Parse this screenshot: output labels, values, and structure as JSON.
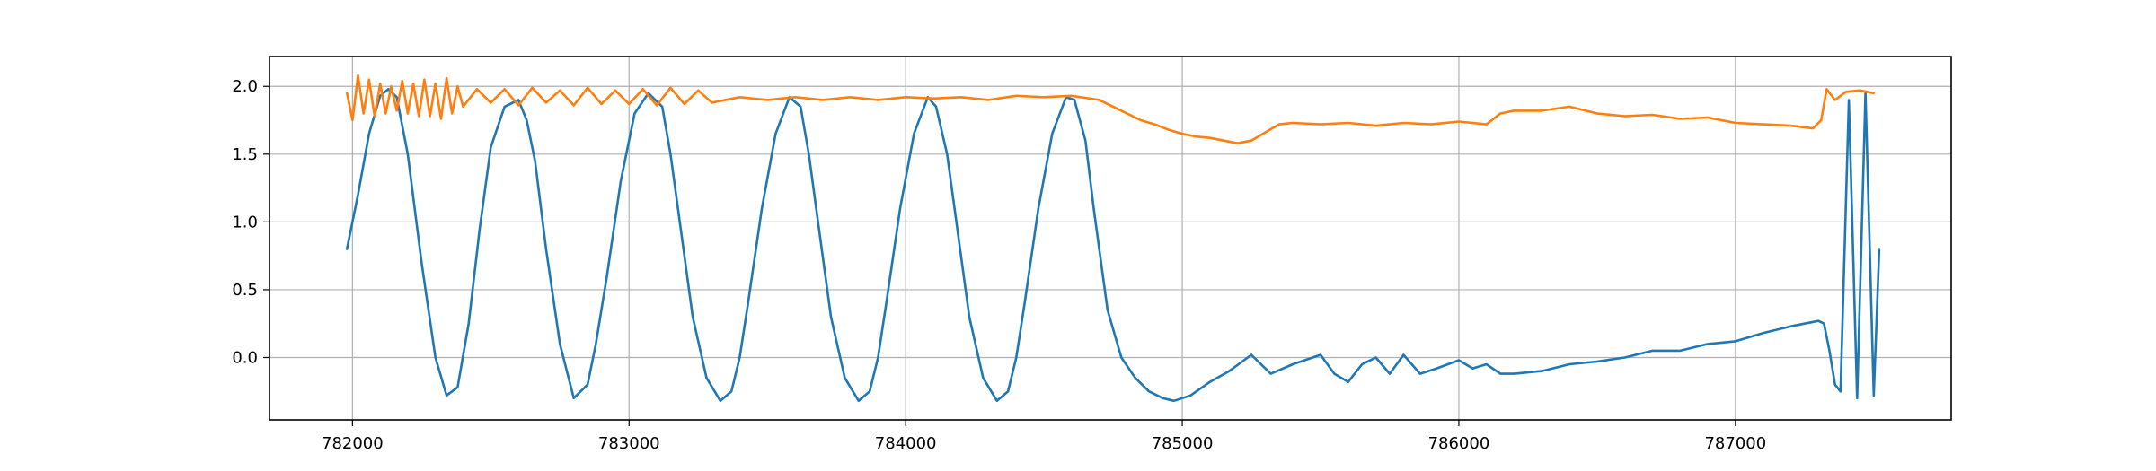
{
  "chart_data": {
    "type": "line",
    "title": "",
    "xlabel": "",
    "ylabel": "",
    "xlim": [
      781700,
      787780
    ],
    "ylim": [
      -0.46,
      2.22
    ],
    "grid": true,
    "x_ticks": [
      782000,
      783000,
      784000,
      785000,
      786000,
      787000
    ],
    "x_tick_labels": [
      "782000",
      "783000",
      "784000",
      "785000",
      "786000",
      "787000"
    ],
    "y_ticks": [
      0.0,
      0.5,
      1.0,
      1.5,
      2.0
    ],
    "y_tick_labels": [
      "0.0",
      "0.5",
      "1.0",
      "1.5",
      "2.0"
    ],
    "series": [
      {
        "color": "#1f77b4",
        "x": [
          781980,
          782020,
          782060,
          782100,
          782130,
          782160,
          782200,
          782250,
          782300,
          782340,
          782380,
          782420,
          782460,
          782500,
          782550,
          782600,
          782630,
          782660,
          782700,
          782750,
          782800,
          782850,
          782880,
          782920,
          782970,
          783020,
          783070,
          783120,
          783150,
          783180,
          783230,
          783280,
          783330,
          783370,
          783400,
          783430,
          783480,
          783530,
          783580,
          783620,
          783650,
          783680,
          783730,
          783780,
          783830,
          783870,
          783900,
          783930,
          783980,
          784030,
          784080,
          784110,
          784150,
          784180,
          784230,
          784280,
          784330,
          784370,
          784400,
          784430,
          784480,
          784530,
          784580,
          784610,
          784650,
          784680,
          784730,
          784780,
          784830,
          784880,
          784930,
          784970,
          785030,
          785100,
          785170,
          785250,
          785320,
          785400,
          785500,
          785550,
          785600,
          785650,
          785700,
          785750,
          785800,
          785860,
          785920,
          786000,
          786050,
          786100,
          786150,
          786200,
          786300,
          786400,
          786500,
          786600,
          786700,
          786800,
          786900,
          787000,
          787100,
          787200,
          787300,
          787320,
          787340,
          787360,
          787380,
          787410,
          787440,
          787470,
          787500,
          787520
        ],
        "y": [
          0.8,
          1.2,
          1.65,
          1.93,
          1.98,
          1.92,
          1.5,
          0.7,
          0.0,
          -0.28,
          -0.22,
          0.25,
          0.95,
          1.55,
          1.85,
          1.9,
          1.75,
          1.45,
          0.8,
          0.1,
          -0.3,
          -0.2,
          0.1,
          0.6,
          1.3,
          1.8,
          1.95,
          1.85,
          1.5,
          1.05,
          0.3,
          -0.15,
          -0.32,
          -0.25,
          0.0,
          0.4,
          1.1,
          1.65,
          1.92,
          1.85,
          1.5,
          1.05,
          0.3,
          -0.15,
          -0.32,
          -0.25,
          0.0,
          0.4,
          1.1,
          1.65,
          1.92,
          1.85,
          1.5,
          1.05,
          0.3,
          -0.15,
          -0.32,
          -0.25,
          0.0,
          0.4,
          1.1,
          1.65,
          1.92,
          1.9,
          1.6,
          1.1,
          0.35,
          0.0,
          -0.15,
          -0.25,
          -0.3,
          -0.32,
          -0.28,
          -0.18,
          -0.1,
          0.02,
          -0.12,
          -0.05,
          0.02,
          -0.12,
          -0.18,
          -0.05,
          0.0,
          -0.12,
          0.02,
          -0.12,
          -0.08,
          -0.02,
          -0.08,
          -0.05,
          -0.12,
          -0.12,
          -0.1,
          -0.05,
          -0.03,
          0.0,
          0.05,
          0.05,
          0.1,
          0.12,
          0.18,
          0.23,
          0.27,
          0.25,
          0.05,
          -0.2,
          -0.25,
          1.9,
          -0.3,
          1.95,
          -0.28,
          0.8
        ]
      },
      {
        "color": "#ff7f0e",
        "x": [
          781980,
          782000,
          782020,
          782040,
          782060,
          782080,
          782100,
          782120,
          782140,
          782160,
          782180,
          782200,
          782220,
          782240,
          782260,
          782280,
          782300,
          782320,
          782340,
          782360,
          782380,
          782400,
          782450,
          782500,
          782550,
          782600,
          782650,
          782700,
          782750,
          782800,
          782850,
          782900,
          782950,
          783000,
          783050,
          783100,
          783150,
          783200,
          783250,
          783300,
          783400,
          783500,
          783600,
          783700,
          783800,
          783900,
          784000,
          784100,
          784200,
          784300,
          784400,
          784500,
          784600,
          784700,
          784750,
          784800,
          784850,
          784900,
          784950,
          785000,
          785050,
          785100,
          785150,
          785200,
          785250,
          785300,
          785350,
          785400,
          785500,
          785600,
          785700,
          785800,
          785900,
          786000,
          786100,
          786150,
          786200,
          786300,
          786400,
          786500,
          786600,
          786700,
          786800,
          786900,
          787000,
          787100,
          787200,
          787280,
          787310,
          787330,
          787360,
          787400,
          787450,
          787500
        ],
        "y": [
          1.95,
          1.75,
          2.08,
          1.8,
          2.05,
          1.78,
          2.02,
          1.8,
          2.0,
          1.82,
          2.04,
          1.8,
          2.02,
          1.78,
          2.05,
          1.78,
          2.02,
          1.76,
          2.06,
          1.8,
          2.0,
          1.85,
          1.98,
          1.88,
          1.98,
          1.86,
          1.99,
          1.88,
          1.97,
          1.86,
          1.99,
          1.87,
          1.97,
          1.87,
          1.98,
          1.86,
          1.99,
          1.87,
          1.97,
          1.88,
          1.92,
          1.9,
          1.92,
          1.9,
          1.92,
          1.9,
          1.92,
          1.91,
          1.92,
          1.9,
          1.93,
          1.92,
          1.93,
          1.9,
          1.85,
          1.8,
          1.75,
          1.72,
          1.68,
          1.65,
          1.63,
          1.62,
          1.6,
          1.58,
          1.6,
          1.66,
          1.72,
          1.73,
          1.72,
          1.73,
          1.71,
          1.73,
          1.72,
          1.74,
          1.72,
          1.8,
          1.82,
          1.82,
          1.85,
          1.8,
          1.78,
          1.79,
          1.76,
          1.77,
          1.73,
          1.72,
          1.71,
          1.69,
          1.75,
          1.98,
          1.9,
          1.96,
          1.97,
          1.95
        ]
      }
    ]
  }
}
